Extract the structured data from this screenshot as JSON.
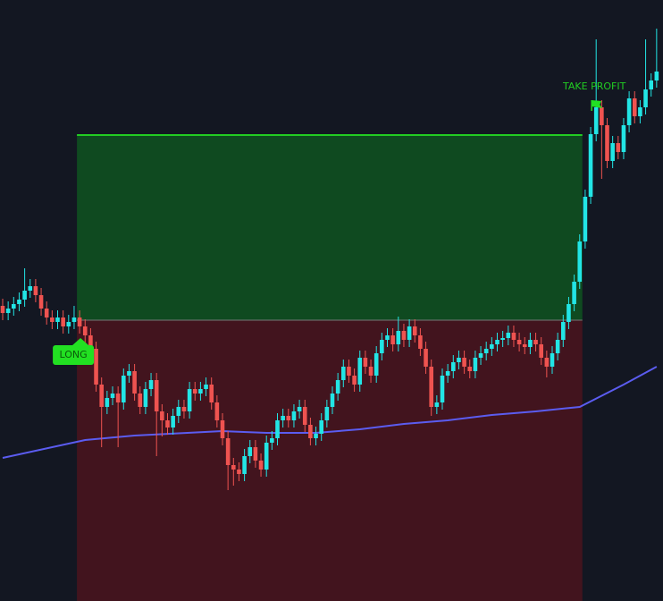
{
  "chart_data": {
    "type": "candlestick",
    "ylim": [
      0,
      672
    ],
    "up_color": "#22e5e5",
    "down_color": "#ef5350",
    "open": [
      330,
      322,
      327,
      332,
      337,
      347,
      352,
      342,
      327,
      317,
      312,
      317,
      307,
      312,
      317,
      307,
      297,
      282,
      242,
      217,
      227,
      232,
      222,
      252,
      257,
      232,
      217,
      237,
      247,
      212,
      202,
      194,
      207,
      217,
      212,
      237,
      232,
      237,
      242,
      222,
      202,
      182,
      152,
      147,
      142,
      162,
      172,
      157,
      147,
      177,
      182,
      202,
      207,
      202,
      212,
      217,
      197,
      182,
      187,
      202,
      217,
      232,
      247,
      262,
      252,
      242,
      272,
      262,
      252,
      277,
      292,
      297,
      287,
      302,
      292,
      307,
      297,
      282,
      262,
      217,
      222,
      252,
      257,
      267,
      272,
      262,
      257,
      272,
      277,
      282,
      287,
      292,
      294,
      300,
      292,
      287,
      284,
      292,
      287,
      272,
      262,
      277,
      292,
      312,
      332,
      357,
      402,
      452,
      522,
      552,
      532,
      492,
      512,
      502,
      532,
      562,
      542,
      552,
      572,
      582
    ],
    "high": [
      338,
      335,
      340,
      345,
      372,
      360,
      360,
      350,
      335,
      325,
      325,
      325,
      320,
      330,
      325,
      315,
      305,
      290,
      250,
      235,
      240,
      240,
      260,
      265,
      265,
      240,
      245,
      255,
      255,
      220,
      210,
      215,
      225,
      225,
      245,
      245,
      245,
      250,
      250,
      230,
      210,
      190,
      160,
      155,
      170,
      180,
      180,
      165,
      185,
      190,
      210,
      215,
      215,
      220,
      225,
      225,
      205,
      195,
      210,
      225,
      240,
      255,
      270,
      270,
      260,
      280,
      280,
      270,
      285,
      300,
      305,
      305,
      318,
      310,
      315,
      315,
      305,
      290,
      270,
      230,
      260,
      265,
      275,
      280,
      280,
      270,
      280,
      285,
      290,
      295,
      300,
      302,
      308,
      308,
      300,
      295,
      300,
      300,
      295,
      280,
      285,
      300,
      320,
      340,
      365,
      410,
      460,
      530,
      628,
      560,
      540,
      520,
      520,
      540,
      570,
      570,
      560,
      628,
      590,
      640
    ],
    "low": [
      314,
      314,
      319,
      324,
      329,
      339,
      334,
      319,
      309,
      304,
      304,
      299,
      299,
      304,
      299,
      289,
      274,
      234,
      172,
      209,
      219,
      172,
      214,
      244,
      224,
      209,
      209,
      229,
      162,
      184,
      186,
      186,
      199,
      204,
      204,
      224,
      224,
      229,
      214,
      194,
      174,
      124,
      129,
      134,
      134,
      154,
      149,
      139,
      139,
      169,
      174,
      194,
      194,
      194,
      204,
      189,
      174,
      174,
      179,
      194,
      209,
      224,
      239,
      244,
      234,
      234,
      254,
      244,
      244,
      269,
      284,
      279,
      279,
      284,
      284,
      289,
      274,
      254,
      207,
      209,
      214,
      244,
      249,
      259,
      254,
      249,
      249,
      264,
      269,
      274,
      279,
      284,
      286,
      284,
      279,
      276,
      276,
      279,
      264,
      250,
      254,
      269,
      284,
      304,
      324,
      349,
      394,
      444,
      514,
      472,
      484,
      484,
      494,
      494,
      524,
      534,
      534,
      544,
      564,
      574
    ],
    "close": [
      322,
      327,
      332,
      337,
      347,
      352,
      342,
      327,
      317,
      312,
      317,
      307,
      312,
      317,
      307,
      297,
      282,
      242,
      217,
      227,
      232,
      222,
      252,
      257,
      232,
      217,
      237,
      247,
      212,
      202,
      194,
      207,
      217,
      212,
      237,
      232,
      237,
      242,
      222,
      202,
      182,
      152,
      147,
      142,
      162,
      172,
      157,
      147,
      177,
      182,
      202,
      207,
      202,
      212,
      217,
      197,
      182,
      187,
      202,
      217,
      232,
      247,
      262,
      252,
      242,
      272,
      262,
      252,
      277,
      292,
      297,
      287,
      302,
      292,
      307,
      297,
      282,
      262,
      217,
      222,
      252,
      257,
      267,
      272,
      262,
      257,
      272,
      277,
      282,
      287,
      292,
      294,
      300,
      292,
      287,
      284,
      292,
      287,
      272,
      262,
      277,
      292,
      312,
      332,
      357,
      402,
      452,
      522,
      552,
      532,
      492,
      512,
      502,
      532,
      562,
      542,
      552,
      572,
      582,
      592
    ],
    "moving_average": {
      "color": "#5b5cf0",
      "x": [
        0,
        15,
        24,
        40,
        48,
        57,
        65,
        73,
        81,
        89,
        97,
        105,
        113,
        119
      ],
      "values": [
        160,
        180,
        185,
        190,
        188,
        188,
        192,
        198,
        202,
        208,
        212,
        217,
        242,
        262
      ]
    },
    "position": {
      "start": 14,
      "end": 105,
      "entry": 314,
      "target": 521,
      "stop": 0,
      "profit_color": "#0f4a20",
      "loss_color": "#42141e",
      "target_color": "#22cc22"
    },
    "entry_label": {
      "text": "LONG",
      "x": 14
    },
    "exit_label": {
      "text": "TAKE PROFIT",
      "x": 108
    }
  }
}
